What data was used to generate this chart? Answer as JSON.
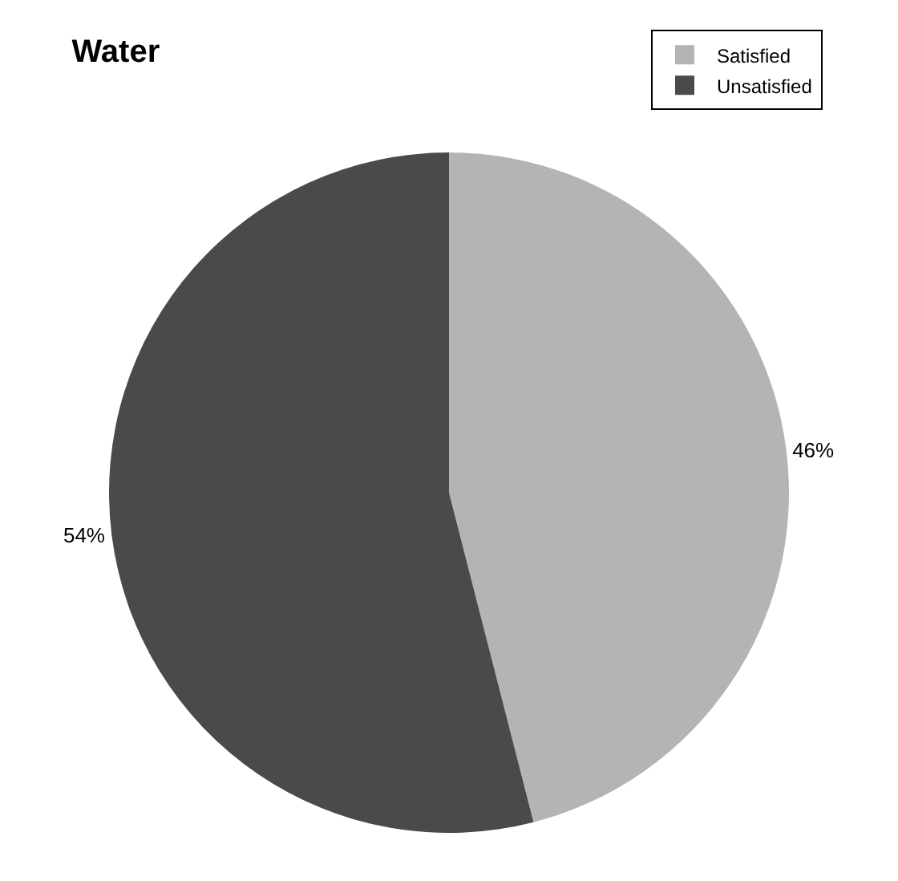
{
  "chart_data": {
    "type": "pie",
    "title": "Water",
    "categories": [
      "Satisfied",
      "Unsatisfied"
    ],
    "values": [
      46,
      54
    ],
    "colors": [
      "#b4b4b4",
      "#4a4a4a"
    ],
    "value_labels": [
      "46%",
      "54%"
    ],
    "legend": "top right"
  }
}
